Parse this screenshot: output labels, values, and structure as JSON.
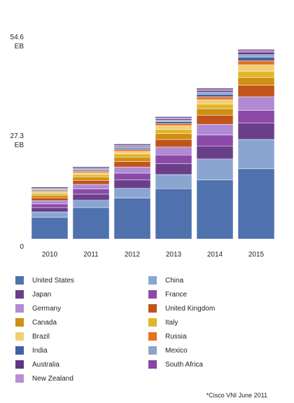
{
  "chart_data": {
    "type": "bar",
    "stacked": true,
    "categories": [
      "2010",
      "2011",
      "2012",
      "2013",
      "2014",
      "2015"
    ],
    "y_tick_labels": [
      "0",
      "27.3\nEB",
      "54.6\nEB"
    ],
    "y_ticks": [
      0,
      27.3,
      54.6
    ],
    "ylim": [
      0,
      54.6
    ],
    "grid": false,
    "legend_position": "bottom",
    "series": [
      {
        "name": "United States",
        "color": "#4f71ad",
        "values": [
          6.0,
          8.7,
          11.3,
          13.9,
          16.3,
          19.4
        ]
      },
      {
        "name": "China",
        "color": "#8ba5d1",
        "values": [
          1.5,
          2.0,
          2.7,
          3.9,
          5.8,
          8.1
        ]
      },
      {
        "name": "Japan",
        "color": "#6a3f8a",
        "values": [
          1.2,
          1.7,
          2.3,
          3.0,
          3.6,
          4.5
        ]
      },
      {
        "name": "France",
        "color": "#8b4aa8",
        "values": [
          1.0,
          1.4,
          1.9,
          2.4,
          3.0,
          3.5
        ]
      },
      {
        "name": "Germany",
        "color": "#b08ad4",
        "values": [
          0.9,
          1.3,
          1.7,
          2.2,
          3.0,
          3.8
        ]
      },
      {
        "name": "United Kingdom",
        "color": "#c0541a",
        "values": [
          0.8,
          1.1,
          1.5,
          2.1,
          2.5,
          3.2
        ]
      },
      {
        "name": "Canada",
        "color": "#d08f12",
        "values": [
          0.7,
          0.9,
          1.2,
          1.6,
          1.8,
          2.1
        ]
      },
      {
        "name": "Italy",
        "color": "#e2b52d",
        "values": [
          0.5,
          0.7,
          0.9,
          1.2,
          1.3,
          1.7
        ]
      },
      {
        "name": "Brazil",
        "color": "#f0cf73",
        "values": [
          0.4,
          0.5,
          0.7,
          1.0,
          1.2,
          1.8
        ]
      },
      {
        "name": "Russia",
        "color": "#e8711f",
        "values": [
          0.3,
          0.4,
          0.5,
          0.6,
          0.8,
          1.1
        ]
      },
      {
        "name": "India",
        "color": "#3f63a3",
        "values": [
          0.25,
          0.3,
          0.4,
          0.5,
          0.7,
          1.0
        ]
      },
      {
        "name": "Mexico",
        "color": "#8ea3cc",
        "values": [
          0.2,
          0.25,
          0.35,
          0.45,
          0.55,
          0.75
        ]
      },
      {
        "name": "Australia",
        "color": "#5e3782",
        "values": [
          0.2,
          0.25,
          0.3,
          0.35,
          0.45,
          0.6
        ]
      },
      {
        "name": "South Africa",
        "color": "#8c43a6",
        "values": [
          0.1,
          0.12,
          0.15,
          0.2,
          0.25,
          0.35
        ]
      },
      {
        "name": "New Zealand",
        "color": "#b98ed6",
        "values": [
          0.08,
          0.1,
          0.12,
          0.15,
          0.2,
          0.25
        ]
      }
    ]
  },
  "legend_order": [
    "United States",
    "China",
    "Japan",
    "France",
    "Germany",
    "United Kingdom",
    "Canada",
    "Italy",
    "Brazil",
    "Russia",
    "India",
    "Mexico",
    "Australia",
    "South Africa",
    "New Zealand"
  ],
  "source_note": "*Cisco VNI June 2011"
}
